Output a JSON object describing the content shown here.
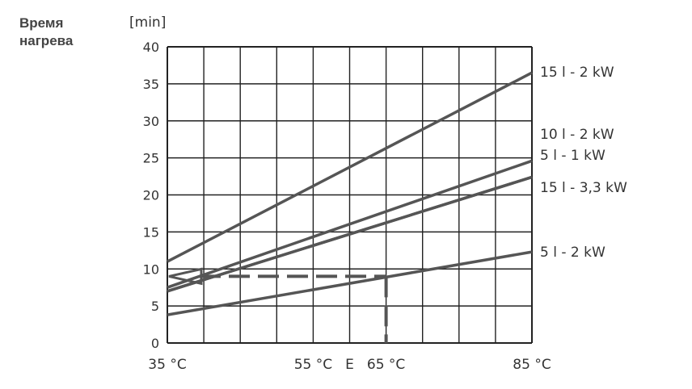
{
  "chart_data": {
    "type": "line",
    "title": "Время нагрева",
    "ylabel": "[min]",
    "xlabel": "",
    "xlim": [
      35,
      85
    ],
    "ylim": [
      0,
      40
    ],
    "yticks": [
      0,
      5,
      10,
      15,
      20,
      25,
      30,
      35,
      40
    ],
    "yticklabels": [
      "0",
      "5",
      "10",
      "15",
      "20",
      "25",
      "30",
      "35",
      "40"
    ],
    "xticks": [
      35,
      55,
      60,
      65,
      85
    ],
    "xticklabels": [
      "35 °C",
      "55 °C",
      "E",
      "65 °C",
      "85 °C"
    ],
    "grid": true,
    "series": [
      {
        "name": "15 l -   2 kW",
        "x": [
          35,
          85
        ],
        "y": [
          11,
          36.5
        ]
      },
      {
        "name": "10 l -   2 kW",
        "x": [
          35,
          85
        ],
        "y": [
          7.5,
          24.6
        ]
      },
      {
        "name": "5 l -   1 kW",
        "x": [
          35,
          85
        ],
        "y": [
          7.0,
          22.4
        ]
      },
      {
        "name": "15 l - 3,3 kW",
        "x": [
          35,
          85
        ],
        "y": [
          7.0,
          22.4
        ]
      },
      {
        "name": "5 l -   2 kW",
        "x": [
          35,
          85
        ],
        "y": [
          3.8,
          12.3
        ]
      }
    ],
    "annotation": {
      "type": "dashed-reference",
      "x": 65,
      "y": 9
    }
  }
}
